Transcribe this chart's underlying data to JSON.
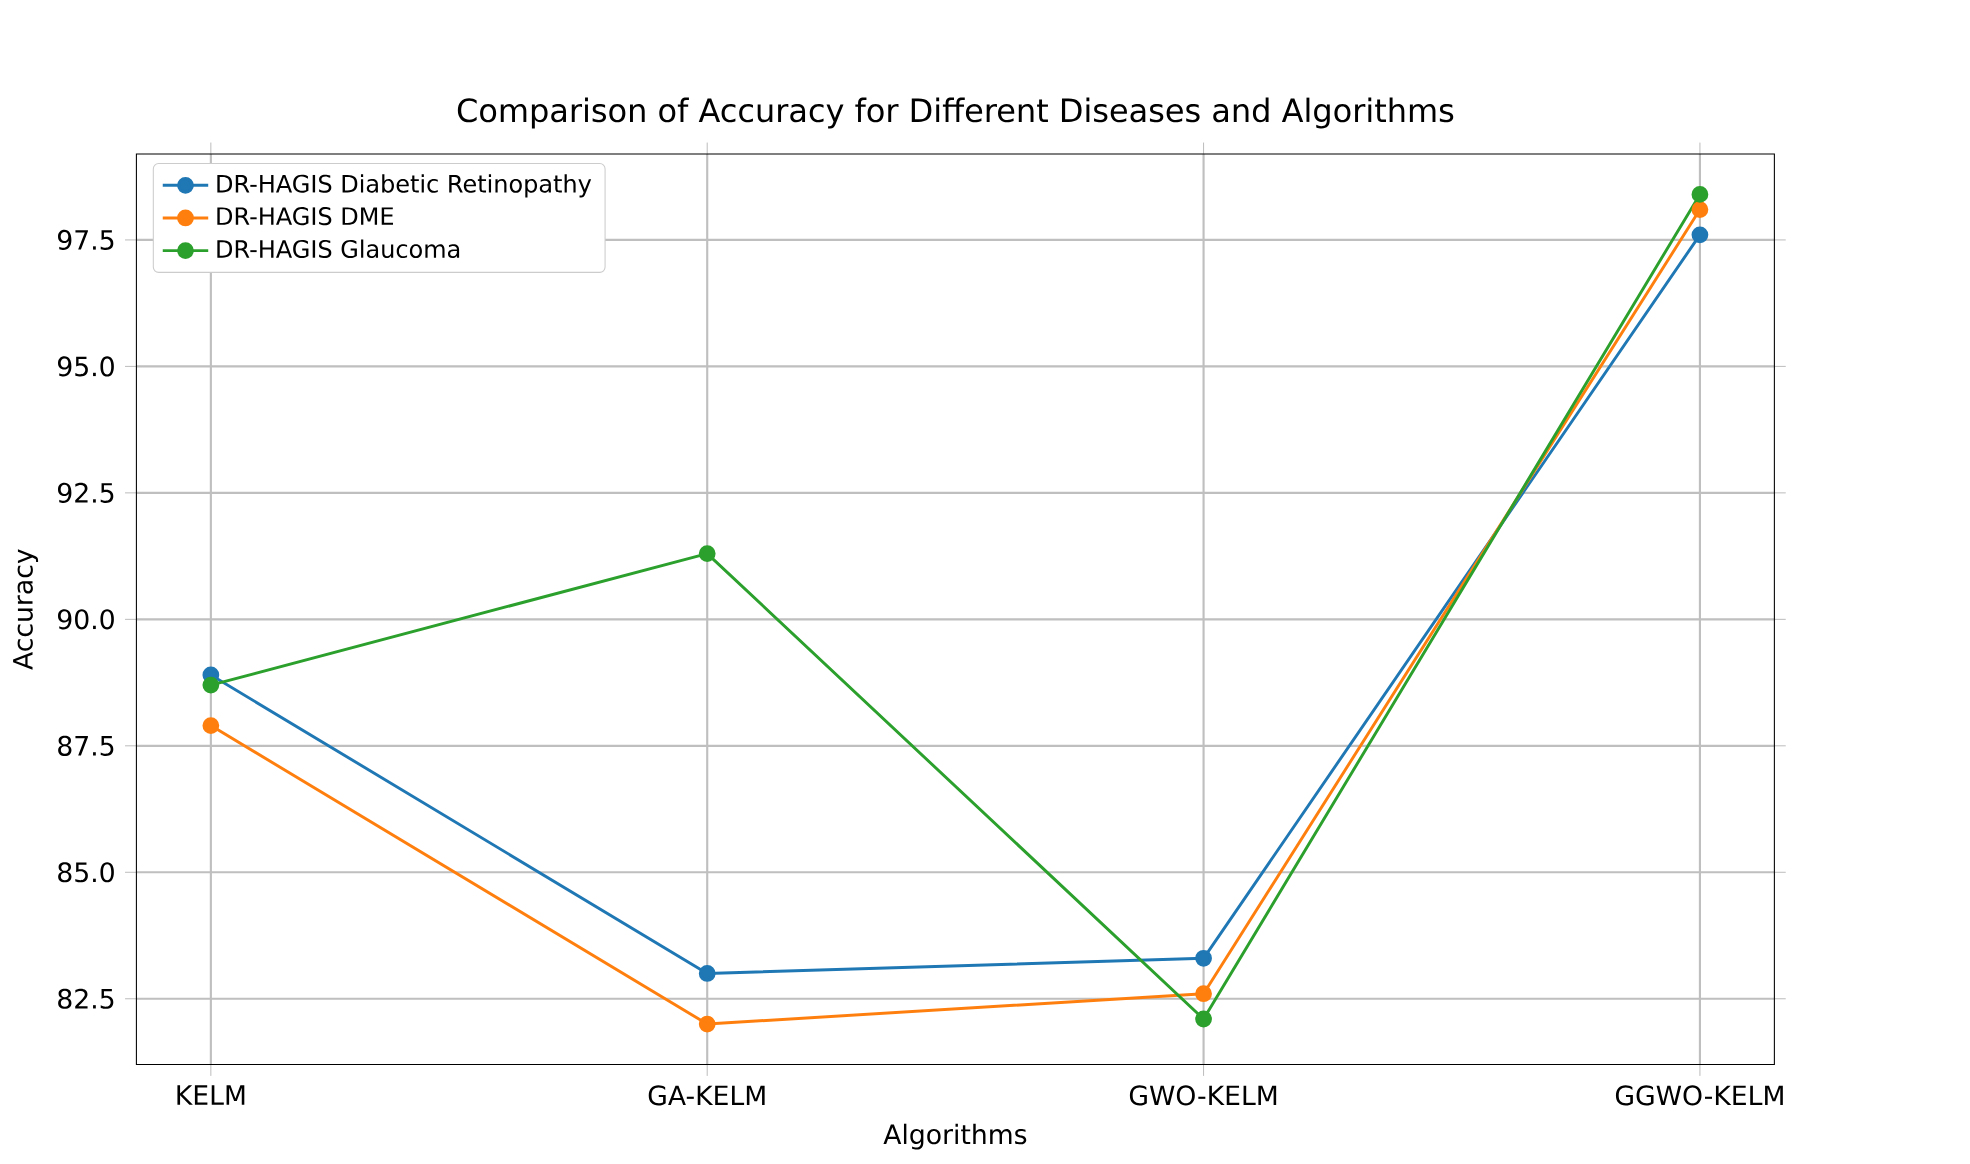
{
  "chart_data": {
    "type": "line",
    "title": "Comparison of Accuracy for Different Diseases and Algorithms",
    "xlabel": "Algorithms",
    "ylabel": "Accuracy",
    "categories": [
      "KELM",
      "GA-KELM",
      "GWO-KELM",
      "GGWO-KELM"
    ],
    "series": [
      {
        "name": "DR-HAGIS Diabetic Retinopathy",
        "color": "#1f77b4",
        "values": [
          88.9,
          83.0,
          83.3,
          97.6
        ]
      },
      {
        "name": "DR-HAGIS DME",
        "color": "#ff7f0e",
        "values": [
          87.9,
          82.0,
          82.6,
          98.1
        ]
      },
      {
        "name": "DR-HAGIS Glaucoma",
        "color": "#2ca02c",
        "values": [
          88.7,
          91.3,
          82.1,
          98.4
        ]
      }
    ],
    "ylim": [
      81.2,
      99.2
    ],
    "yticks": [
      {
        "value": 82.5,
        "label": "82.5"
      },
      {
        "value": 85,
        "label": "85.0"
      },
      {
        "value": 87.5,
        "label": "87.5"
      },
      {
        "value": 90,
        "label": "90.0"
      },
      {
        "value": 92.5,
        "label": "92.5"
      },
      {
        "value": 95,
        "label": "95.0"
      },
      {
        "value": 97.5,
        "label": "97.5"
      }
    ],
    "grid": true,
    "legend": "top left",
    "marker": "circle",
    "line_style": "solid"
  }
}
